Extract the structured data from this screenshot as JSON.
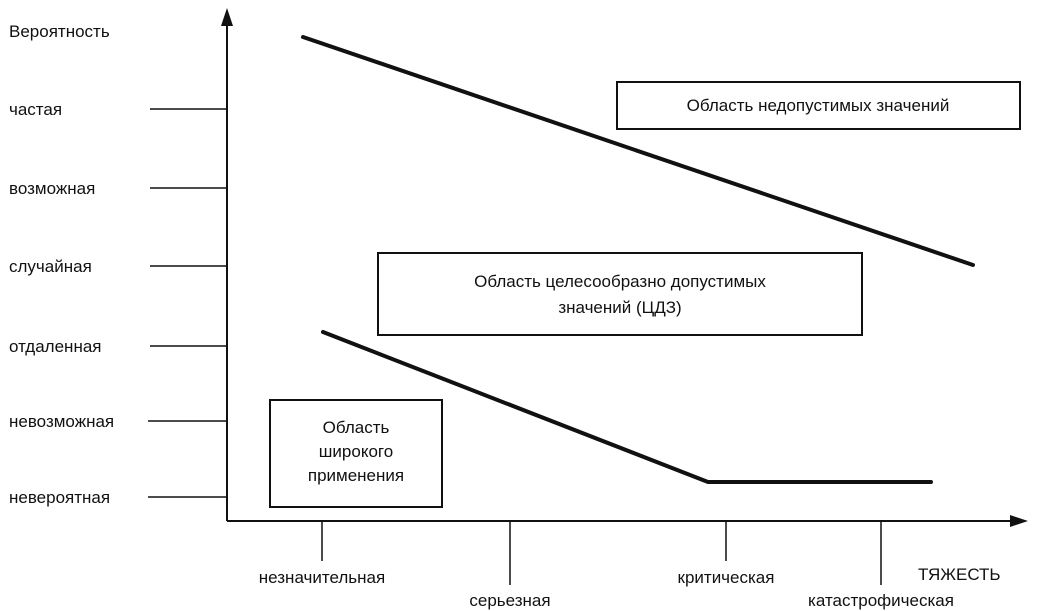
{
  "y_axis": {
    "title": "Вероятность",
    "levels": [
      "частая",
      "возможная",
      "случайная",
      "отдаленная",
      "невозможная",
      "невероятная"
    ]
  },
  "x_axis": {
    "title": "ТЯЖЕСТЬ",
    "levels": [
      "незначительная",
      "серьезная",
      "критическая",
      "катастрофическая"
    ]
  },
  "regions": {
    "unacceptable": {
      "lines": [
        "Область недопустимых значений"
      ]
    },
    "alarp": {
      "lines": [
        "Область целесообразно допустимых",
        "значений (ЦДЗ)"
      ]
    },
    "broad": {
      "lines": [
        "Область",
        "широкого",
        "применения"
      ]
    }
  }
}
